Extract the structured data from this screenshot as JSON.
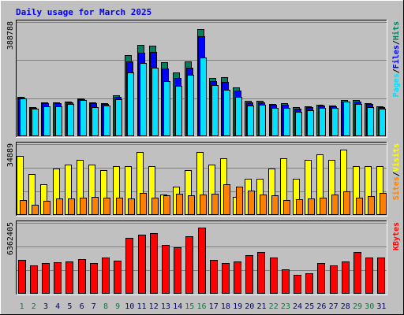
{
  "chart_data": {
    "type": "bar",
    "title": "Daily usage for March 2025",
    "days": [
      "1",
      "2",
      "3",
      "4",
      "5",
      "6",
      "7",
      "8",
      "9",
      "10",
      "11",
      "12",
      "13",
      "14",
      "15",
      "16",
      "17",
      "18",
      "19",
      "20",
      "21",
      "22",
      "23",
      "24",
      "25",
      "26",
      "27",
      "28",
      "29",
      "30",
      "31"
    ],
    "weekend_days": [
      "1",
      "2",
      "8",
      "9",
      "15",
      "16",
      "22",
      "23",
      "29",
      "30"
    ],
    "colors": {
      "hits": "#008060",
      "files": "#0000ff",
      "pages": "#00e0ff",
      "visits": "#ffff00",
      "sites": "#ff8000",
      "kbytes": "#ff0000",
      "title": "#0000ff",
      "weekday_label": "#000080",
      "weekend_label": "#008040"
    },
    "panels": [
      {
        "id": "hits-files-pages",
        "ymax_label": "388788",
        "ymax": 388788,
        "legend": [
          {
            "name": "Pages",
            "color": "#00e0ff"
          },
          {
            "sep": "/"
          },
          {
            "name": "Files",
            "color": "#0000ff"
          },
          {
            "sep": "/"
          },
          {
            "name": "Hits",
            "color": "#008060"
          }
        ],
        "series": [
          {
            "name": "Hits",
            "values": [
              134000,
              98000,
              116000,
              116000,
              118000,
              129000,
              114000,
              112000,
              139000,
              277000,
              310000,
              309000,
              252000,
              216000,
              254000,
              365000,
              199000,
              200000,
              165000,
              121000,
              121000,
              111000,
              112000,
              99000,
              101000,
              107000,
              104000,
              124000,
              122000,
              113000,
              103000
            ]
          },
          {
            "name": "Files",
            "values": [
              131000,
              96000,
              113000,
              113000,
              115000,
              126000,
              112000,
              110000,
              135000,
              254000,
              284000,
              287000,
              230000,
              198000,
              233000,
              340000,
              187000,
              185000,
              155000,
              115000,
              115000,
              106000,
              108000,
              94000,
              98000,
              105000,
              102000,
              119000,
              117000,
              109000,
              100000
            ]
          },
          {
            "name": "Pages",
            "values": [
              130000,
              95000,
              101000,
              102000,
              109000,
              124000,
              98000,
              104000,
              126000,
              218000,
              250000,
              234000,
              189000,
              172000,
              209000,
              268000,
              174000,
              159000,
              135000,
              105000,
              106000,
              96000,
              97000,
              84000,
              89000,
              96000,
              96000,
              119000,
              111000,
              99000,
              95000
            ]
          }
        ]
      },
      {
        "id": "visits-sites",
        "ymax_label": "34889",
        "ymax": 34889,
        "legend": [
          {
            "name": "Sites",
            "color": "#ff8000"
          },
          {
            "sep": "/"
          },
          {
            "name": "Visits",
            "color": "#ffff00"
          }
        ],
        "series": [
          {
            "name": "Visits",
            "values": [
              29000,
              20000,
              15000,
              23000,
              25000,
              27000,
              25000,
              22000,
              24000,
              24000,
              31000,
              24000,
              10000,
              14000,
              22000,
              31000,
              25000,
              28000,
              9000,
              18000,
              18000,
              23000,
              28000,
              18000,
              27000,
              30000,
              27000,
              32000,
              24000,
              24000,
              24000
            ]
          },
          {
            "name": "Sites",
            "values": [
              7500,
              5000,
              7000,
              8000,
              8000,
              8500,
              8800,
              8500,
              8500,
              8000,
              11000,
              8500,
              9500,
              10500,
              9500,
              10000,
              10500,
              15000,
              14000,
              12000,
              10000,
              9500,
              7500,
              7800,
              8300,
              8700,
              10000,
              11500,
              8700,
              9300,
              11000
            ]
          }
        ]
      },
      {
        "id": "kbytes",
        "ymax_label": "6362405",
        "ymax": 6362405,
        "legend": [
          {
            "name": "KBytes",
            "color": "#ff0000"
          }
        ],
        "series": [
          {
            "name": "KBytes",
            "values": [
              3010000,
              2550000,
              2730000,
              2820000,
              2900000,
              3100000,
              2730000,
              3280000,
              2990000,
              5000000,
              5270000,
              5450000,
              4400000,
              4180000,
              5180000,
              5910000,
              3010000,
              2790000,
              2910000,
              3460000,
              3730000,
              3280000,
              2190000,
              1730000,
              1820000,
              2730000,
              2550000,
              2910000,
              3740000,
              3280000,
              3280000
            ]
          }
        ]
      }
    ]
  }
}
